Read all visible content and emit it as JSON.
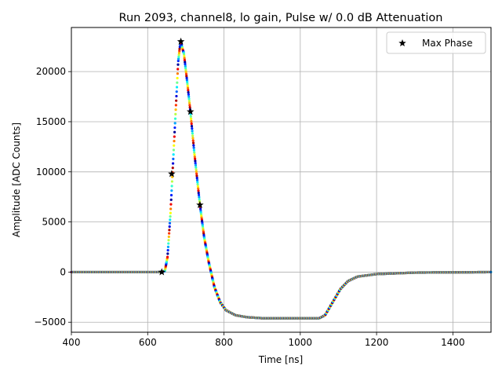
{
  "chart_data": {
    "type": "scatter",
    "title": "Run 2093, channel8, lo gain, Pulse w/ 0.0 dB Attenuation",
    "xlabel": "Time [ns]",
    "ylabel": "Amplitude [ADC Counts]",
    "xlim": [
      400,
      1500
    ],
    "ylim": [
      -6000,
      24400
    ],
    "xticks": [
      400,
      600,
      800,
      1000,
      1200,
      1400
    ],
    "yticks": [
      -5000,
      0,
      5000,
      10000,
      15000,
      20000
    ],
    "xtick_labels": [
      "400",
      "600",
      "800",
      "1000",
      "1200",
      "1400"
    ],
    "ytick_labels": [
      "−5000",
      "0",
      "5000",
      "10000",
      "15000",
      "20000"
    ],
    "grid": true,
    "legend": {
      "placement": "top-right",
      "entries": [
        "Max Phase"
      ]
    },
    "colormap": "jet",
    "pulse_shape": [
      [
        400,
        0
      ],
      [
        630,
        0
      ],
      [
        645,
        100
      ],
      [
        652,
        1500
      ],
      [
        660,
        6000
      ],
      [
        665,
        9800
      ],
      [
        672,
        15000
      ],
      [
        680,
        21000
      ],
      [
        686,
        23000
      ],
      [
        695,
        21800
      ],
      [
        705,
        18500
      ],
      [
        712,
        16000
      ],
      [
        722,
        12000
      ],
      [
        737,
        6700
      ],
      [
        748,
        3500
      ],
      [
        760,
        1000
      ],
      [
        775,
        -1500
      ],
      [
        790,
        -3000
      ],
      [
        805,
        -3800
      ],
      [
        830,
        -4300
      ],
      [
        860,
        -4500
      ],
      [
        900,
        -4600
      ],
      [
        1000,
        -4600
      ],
      [
        1050,
        -4600
      ],
      [
        1065,
        -4300
      ],
      [
        1085,
        -3000
      ],
      [
        1105,
        -1700
      ],
      [
        1125,
        -900
      ],
      [
        1150,
        -450
      ],
      [
        1200,
        -200
      ],
      [
        1300,
        -50
      ],
      [
        1500,
        0
      ]
    ],
    "max_phase_points": [
      {
        "x": 637,
        "y": 0
      },
      {
        "x": 663,
        "y": 9800
      },
      {
        "x": 687,
        "y": 23000
      },
      {
        "x": 712,
        "y": 16000
      },
      {
        "x": 737,
        "y": 6700
      }
    ]
  }
}
